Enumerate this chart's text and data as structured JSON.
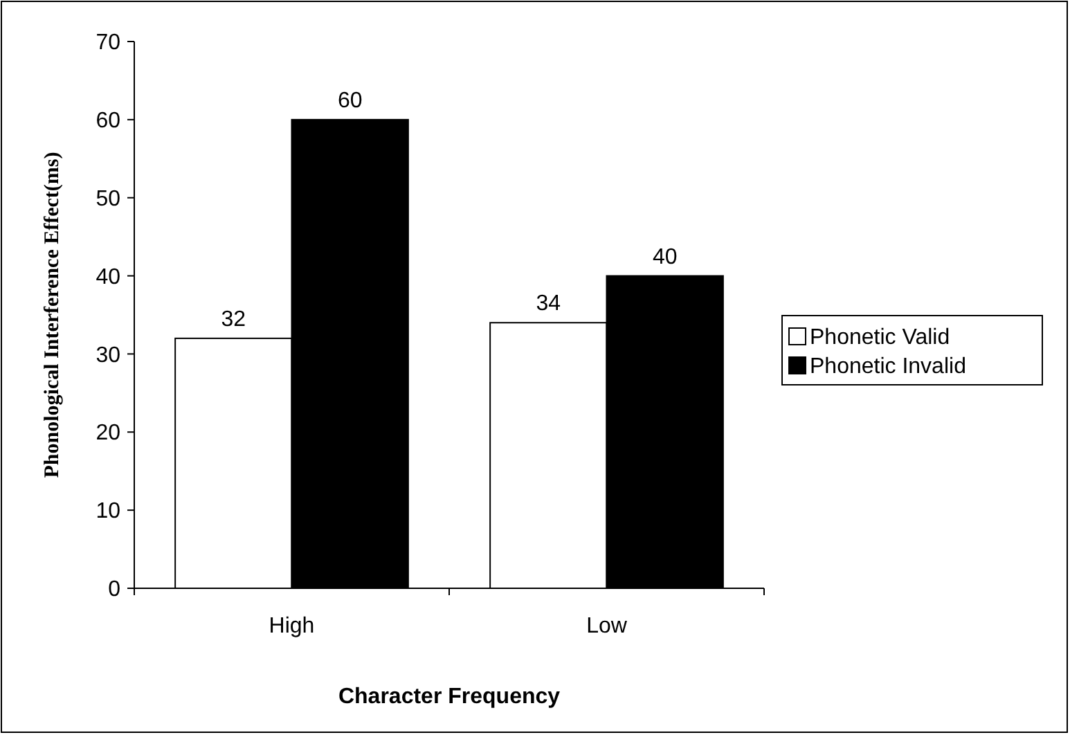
{
  "chart_data": {
    "type": "bar",
    "xlabel": "Character Frequency",
    "ylabel": "Phonological Interference Effect(ms)",
    "categories": [
      "High",
      "Low"
    ],
    "series": [
      {
        "name": "Phonetic Valid",
        "color": "#ffffff",
        "values": [
          32,
          34
        ]
      },
      {
        "name": "Phonetic Invalid",
        "color": "#000000",
        "values": [
          60,
          40
        ]
      }
    ],
    "ylim": [
      0,
      70
    ],
    "yticks": [
      0,
      10,
      20,
      30,
      40,
      50,
      60,
      70
    ],
    "data_labels": true,
    "legend": "right",
    "grid": false
  }
}
